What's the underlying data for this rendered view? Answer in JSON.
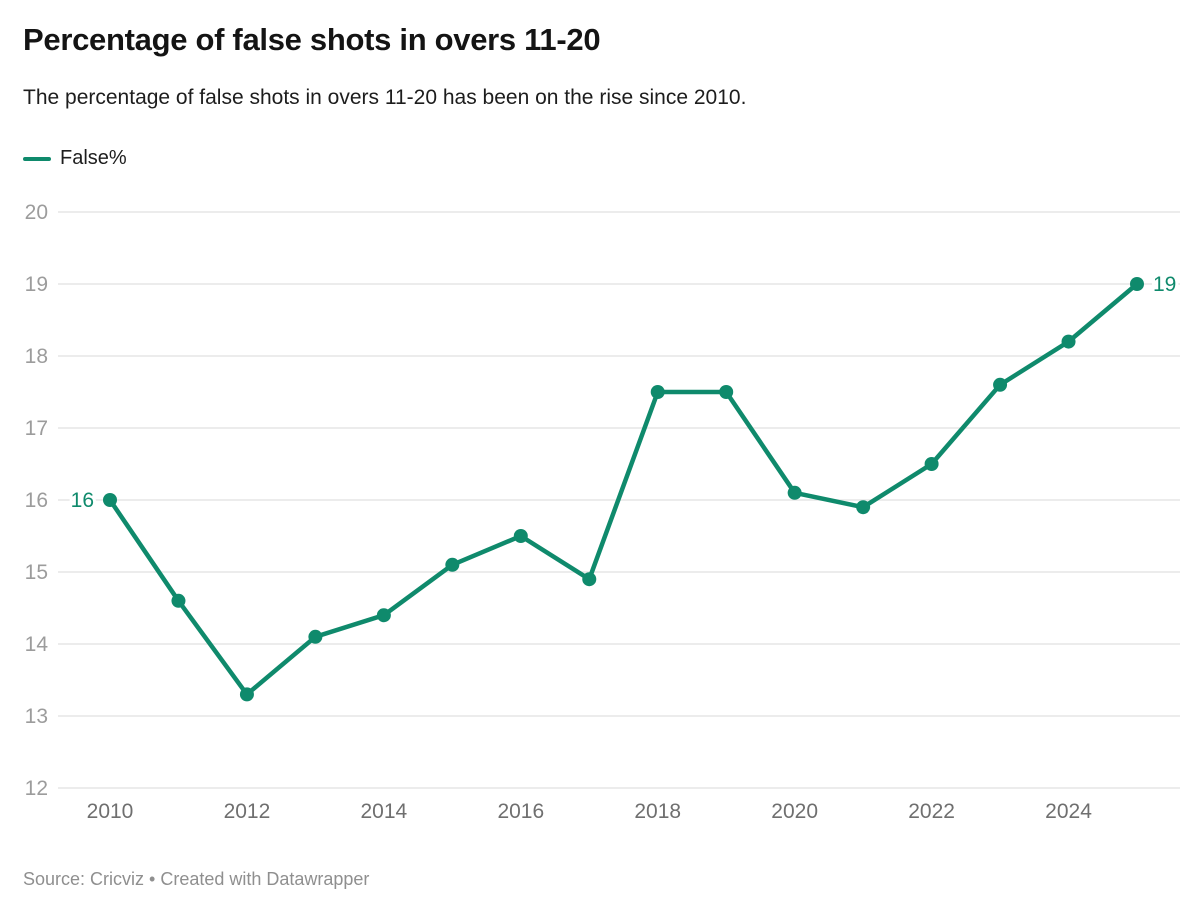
{
  "header": {
    "title": "Percentage of false shots in overs 11-20",
    "subtitle": "The percentage of false shots in overs 11-20 has been on the rise since 2010."
  },
  "legend": {
    "label": "False%"
  },
  "footer": {
    "source": "Source: Cricviz • Created with Datawrapper"
  },
  "colors": {
    "line": "#0f8a6c",
    "point": "#0f8a6c",
    "grid": "#e6e6e6",
    "y_tick_label": "#9c9c9c",
    "x_tick_label": "#6f6f6f",
    "point_label": "#0f8a6c"
  },
  "chart_data": {
    "type": "line",
    "title": "Percentage of false shots in overs 11-20",
    "subtitle": "The percentage of false shots in overs 11-20 has been on the rise since 2010.",
    "xlabel": "",
    "ylabel": "",
    "x": [
      2010,
      2011,
      2012,
      2013,
      2014,
      2015,
      2016,
      2017,
      2018,
      2019,
      2020,
      2021,
      2022,
      2023,
      2024,
      2025
    ],
    "series": [
      {
        "name": "False%",
        "values": [
          16,
          14.6,
          13.3,
          14.1,
          14.4,
          15.1,
          15.5,
          14.9,
          17.5,
          17.5,
          16.1,
          15.9,
          16.5,
          17.6,
          18.2,
          19
        ]
      }
    ],
    "ylim": [
      12,
      20
    ],
    "yticks": [
      12,
      13,
      14,
      15,
      16,
      17,
      18,
      19,
      20
    ],
    "xticks": [
      2010,
      2012,
      2014,
      2016,
      2018,
      2020,
      2022,
      2024
    ],
    "grid": "horizontal",
    "legend_position": "top-left",
    "point_labels": {
      "first": "16",
      "last": "19"
    },
    "source": "Source: Cricviz • Created with Datawrapper"
  }
}
